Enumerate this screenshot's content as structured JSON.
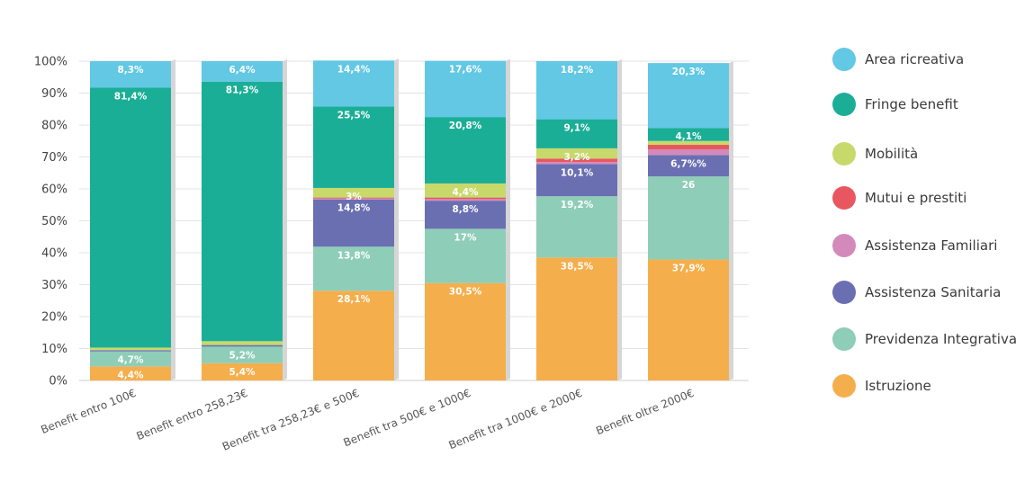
{
  "chart_data": {
    "type": "bar",
    "stacked": true,
    "categories": [
      "Benefit entro 100€",
      "Benefit entro 258,23€",
      "Benefit tra 258,23€ e 500€",
      "Benefit tra 500€ e 1000€",
      "Benefit tra 1000€ e 2000€",
      "Benefit oltre 2000€"
    ],
    "yticks": [
      "0%",
      "10%",
      "20%",
      "30%",
      "40%",
      "50%",
      "60%",
      "70%",
      "80%",
      "90%",
      "100%"
    ],
    "ylim": [
      0,
      100
    ],
    "grid": true,
    "legend_position": "right",
    "series": [
      {
        "name": "Istruzione",
        "color": "#F5AE4C",
        "values": [
          4.4,
          5.4,
          28.1,
          30.5,
          38.5,
          37.9
        ],
        "labels": [
          "4,4%",
          "5,4%",
          "28,1%",
          "30,5%",
          "38,5%",
          "37,9%"
        ]
      },
      {
        "name": "Previdenza Integrativa",
        "color": "#8ECDB8",
        "values": [
          4.7,
          5.2,
          13.8,
          17,
          19.2,
          26
        ],
        "labels": [
          "4,7%",
          "5,2%",
          "13,8%",
          "17%",
          "19,2%",
          "26"
        ]
      },
      {
        "name": "Assistenza Sanitaria",
        "color": "#6A6FB2",
        "values": [
          0.4,
          0.5,
          14.8,
          8.8,
          10.1,
          6.7
        ],
        "labels": [
          "",
          "",
          "14,8%",
          "8,8%",
          "10,1%",
          "6,7%%"
        ]
      },
      {
        "name": "Assistenza Familiari",
        "color": "#D38ABB",
        "values": [
          0,
          0,
          0.3,
          0.5,
          0.6,
          1.8
        ],
        "labels": [
          "",
          "",
          "",
          "",
          "",
          ""
        ]
      },
      {
        "name": "Mutui e prestiti",
        "color": "#E8575F",
        "values": [
          0,
          0,
          0.3,
          0.5,
          1.1,
          1.4
        ],
        "labels": [
          "",
          "",
          "",
          "",
          "",
          ""
        ]
      },
      {
        "name": "Mobilità",
        "color": "#C7D96B",
        "values": [
          0.8,
          1.2,
          3,
          4.4,
          3.2,
          1.2
        ],
        "labels": [
          "",
          "",
          "3%",
          "4,4%",
          "3,2%",
          ""
        ]
      },
      {
        "name": "Fringe benefit",
        "color": "#1BAE96",
        "values": [
          81.4,
          81.3,
          25.5,
          20.8,
          9.1,
          4.1
        ],
        "labels": [
          "81,4%",
          "81,3%",
          "25,5%",
          "20,8%",
          "9,1%",
          "4,1%"
        ]
      },
      {
        "name": "Area ricreativa",
        "color": "#62C8E4",
        "values": [
          8.3,
          6.4,
          14.4,
          17.6,
          18.2,
          20.3
        ],
        "labels": [
          "8,3%",
          "6,4%",
          "14,4%",
          "17,6%",
          "18,2%",
          "20,3%"
        ]
      }
    ]
  },
  "legend": [
    {
      "label": "Area ricreativa",
      "color": "#62C8E4"
    },
    {
      "label": "Fringe benefit",
      "color": "#1BAE96"
    },
    {
      "label": "Mobilità",
      "color": "#C7D96B"
    },
    {
      "label": "Mutui e prestiti",
      "color": "#E8575F"
    },
    {
      "label": "Assistenza Familiari",
      "color": "#D38ABB"
    },
    {
      "label": "Assistenza Sanitaria",
      "color": "#6A6FB2"
    },
    {
      "label": "Previdenza Integrativa",
      "color": "#8ECDB8"
    },
    {
      "label": "Istruzione",
      "color": "#F5AE4C"
    }
  ]
}
